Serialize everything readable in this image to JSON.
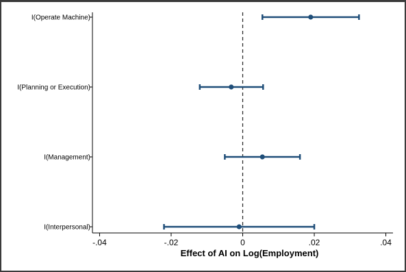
{
  "chart_data": {
    "type": "scatter",
    "subtype": "coefficient-plot-with-confidence-intervals",
    "title": "",
    "xlabel": "Effect of AI on Log(Employment)",
    "ylabel": "",
    "xlim": [
      -0.042,
      0.042
    ],
    "x_ticks": [
      -0.04,
      -0.02,
      0,
      0.02,
      0.04
    ],
    "x_tick_labels": [
      "-.04",
      "-.02",
      "0",
      ".02",
      ".04"
    ],
    "reference_line": {
      "x": 0,
      "style": "dashed"
    },
    "grid": false,
    "legend": "none",
    "color": "#1f4e79",
    "categories": [
      "I(Operate Machine)",
      "I(Planning or Execution)",
      "I(Management)",
      "I(Interpersonal)"
    ],
    "estimates": [
      0.019,
      -0.0032,
      0.0055,
      -0.001
    ],
    "ci_low": [
      0.0055,
      -0.012,
      -0.005,
      -0.022
    ],
    "ci_high": [
      0.0325,
      0.0057,
      0.016,
      0.02
    ]
  }
}
